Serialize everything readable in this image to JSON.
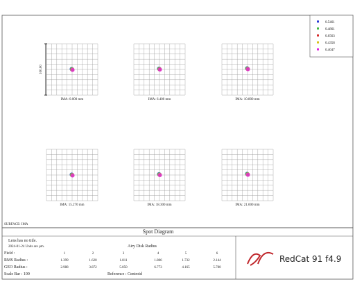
{
  "legend": [
    "0.5461",
    "0.4861",
    "0.6563",
    "0.4358",
    "0.4047"
  ],
  "scale_label": "100.00",
  "fields": [
    "IMA: 0.000 mm",
    "IMA: 6.400 mm",
    "IMA: 10.800 mm",
    "IMA: 15.270 mm",
    "IMA: 18.300 mm",
    "IMA: 21.600 mm"
  ],
  "surface": "SURFACE: IMA",
  "title": "Spot Diagram",
  "info": {
    "lens": "Lens has no title.",
    "date": "2024-01-24 Units are µm.",
    "airy": "Airy Disk Radius",
    "field_label": "Field :",
    "field_numbers": [
      "1",
      "2",
      "3",
      "4",
      "5",
      "6"
    ],
    "rms_label": "RMS Radius :",
    "rms": [
      "1.399",
      "1.620",
      "1.811",
      "1.806",
      "1.732",
      "2.144"
    ],
    "geo_label": "GEO Radius :",
    "geo": [
      "2.988",
      "3.872",
      "5.050",
      "6.773",
      "4.165",
      "5.780"
    ],
    "scale_bar": "Scale Bar : 100",
    "reference": "Reference : Centroid"
  },
  "product": "RedCat 91  f4.9"
}
